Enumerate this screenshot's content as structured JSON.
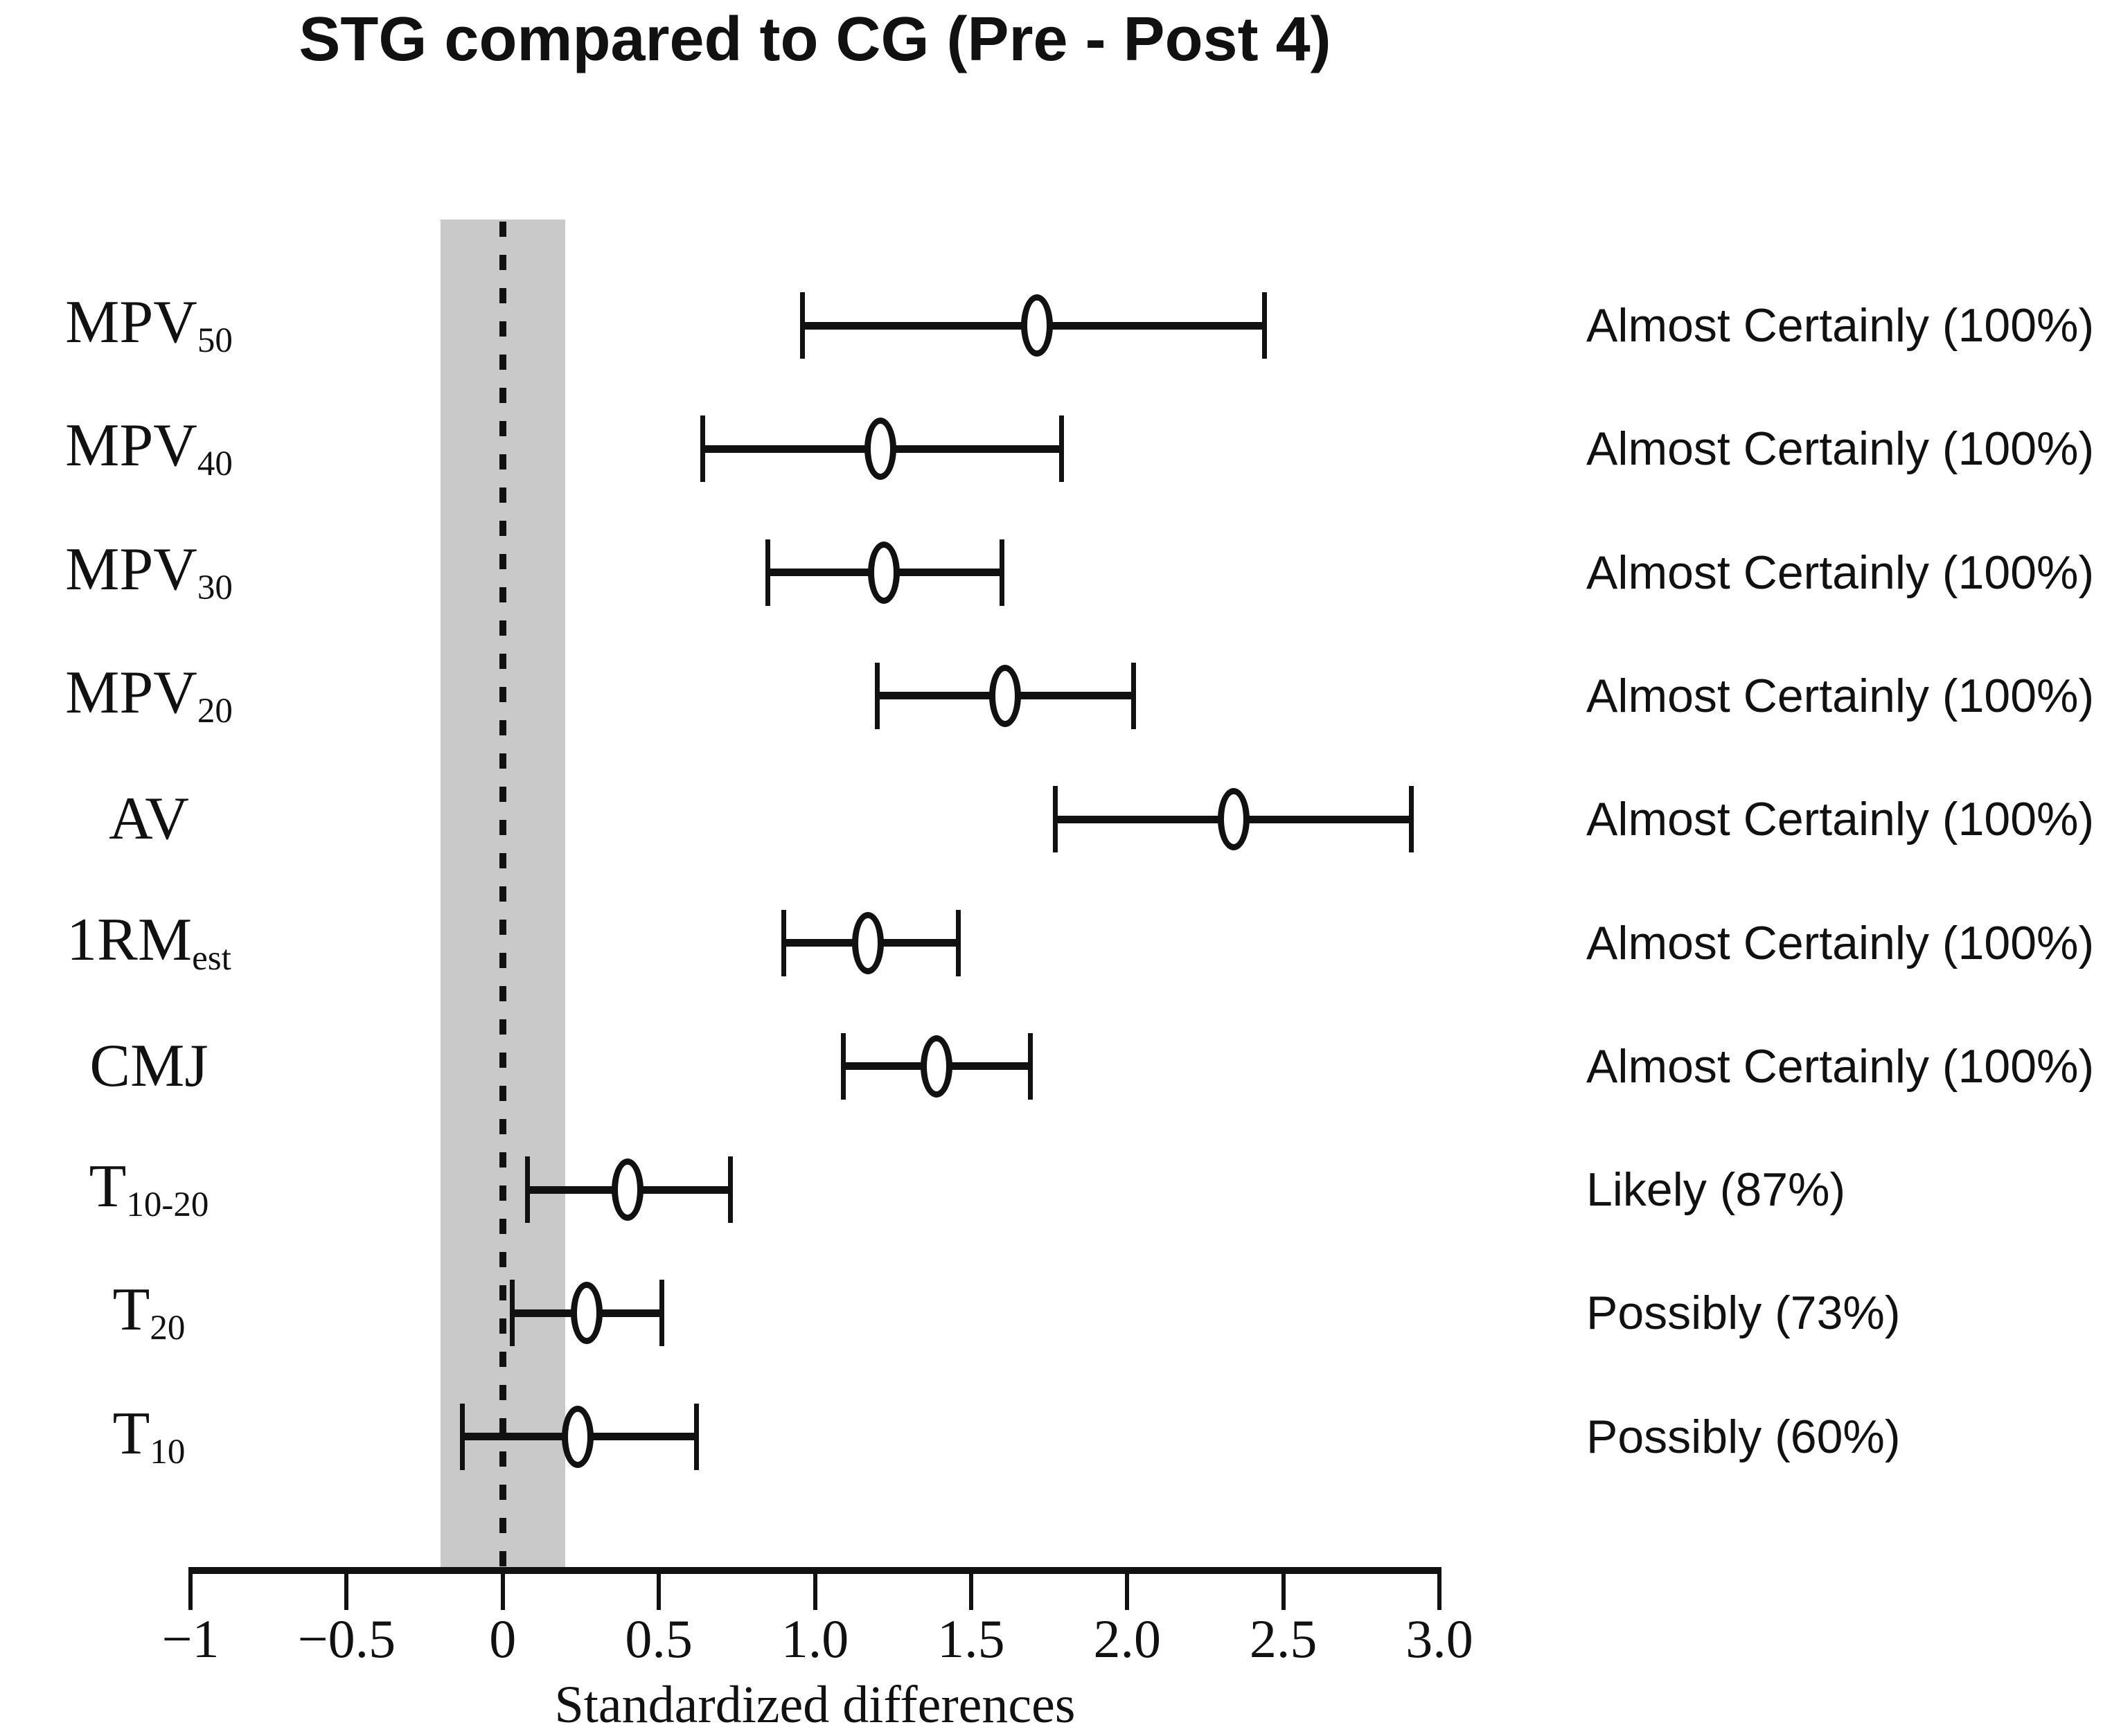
{
  "chart_data": {
    "type": "scatter",
    "subtype": "forest-dot-whisker",
    "title": "STG compared to CG (Pre - Post 4)",
    "xlabel": "Standardized differences",
    "ylabel": "",
    "xlim": [
      -1,
      3
    ],
    "grid": false,
    "legend_position": "none",
    "zero_line": {
      "value": 0,
      "style": "dashed",
      "color": "#111111"
    },
    "trivial_band": {
      "from": -0.2,
      "to": 0.2,
      "color": "#c9c9c9"
    },
    "marker_style": {
      "fill": "#ffffff",
      "stroke": "#111111"
    },
    "x_ticks": [
      {
        "v": -1,
        "label": "−1"
      },
      {
        "v": -0.5,
        "label": "−0.5"
      },
      {
        "v": 0,
        "label": "0"
      },
      {
        "v": 0.5,
        "label": "0.5"
      },
      {
        "v": 1,
        "label": "1.0"
      },
      {
        "v": 1.5,
        "label": "1.5"
      },
      {
        "v": 2,
        "label": "2.0"
      },
      {
        "v": 2.5,
        "label": "2.5"
      },
      {
        "v": 3,
        "label": "3.0"
      }
    ],
    "rows": [
      {
        "label_base": "MPV",
        "label_sub": "50",
        "mean": 1.71,
        "lower": 0.96,
        "upper": 2.44,
        "inference": "Almost Certainly (100%)"
      },
      {
        "label_base": "MPV",
        "label_sub": "40",
        "mean": 1.21,
        "lower": 0.64,
        "upper": 1.79,
        "inference": "Almost Certainly (100%)"
      },
      {
        "label_base": "MPV",
        "label_sub": "30",
        "mean": 1.22,
        "lower": 0.85,
        "upper": 1.6,
        "inference": "Almost Certainly (100%)"
      },
      {
        "label_base": "MPV",
        "label_sub": "20",
        "mean": 1.61,
        "lower": 1.2,
        "upper": 2.02,
        "inference": "Almost Certainly (100%)"
      },
      {
        "label_base": "AV",
        "label_sub": "",
        "mean": 2.34,
        "lower": 1.77,
        "upper": 2.91,
        "inference": "Almost Certainly (100%)"
      },
      {
        "label_base": "1RM",
        "label_sub": "est",
        "mean": 1.17,
        "lower": 0.9,
        "upper": 1.46,
        "inference": "Almost Certainly (100%)"
      },
      {
        "label_base": "CMJ",
        "label_sub": "",
        "mean": 1.39,
        "lower": 1.09,
        "upper": 1.69,
        "inference": "Almost Certainly (100%)"
      },
      {
        "label_base": "T",
        "label_sub": "10-20",
        "mean": 0.4,
        "lower": 0.08,
        "upper": 0.73,
        "inference": "Likely (87%)"
      },
      {
        "label_base": "T",
        "label_sub": "20",
        "mean": 0.27,
        "lower": 0.03,
        "upper": 0.51,
        "inference": "Possibly (73%)"
      },
      {
        "label_base": "T",
        "label_sub": "10",
        "mean": 0.24,
        "lower": -0.13,
        "upper": 0.62,
        "inference": "Possibly (60%)"
      }
    ]
  }
}
